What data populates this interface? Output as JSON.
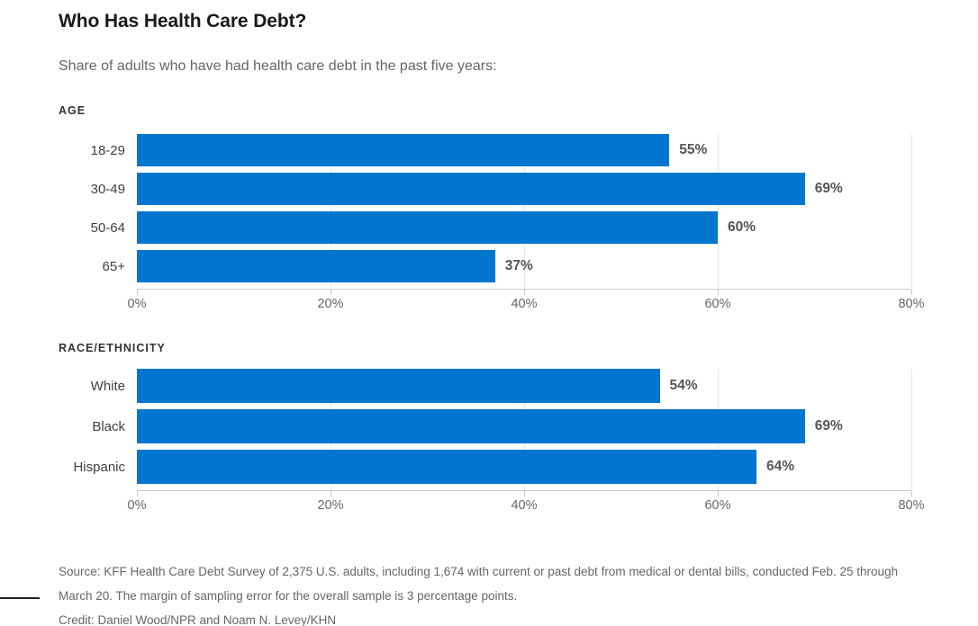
{
  "title": "Who Has Health Care Debt?",
  "subtitle": "Share of adults who have had health care debt in the past five years:",
  "colors": {
    "bar": "#0276CE",
    "axis": "#c9c9c9",
    "gridline": "#e7e7e7"
  },
  "chart_data": [
    {
      "type": "bar",
      "orientation": "horizontal",
      "section_label": "AGE",
      "categories": [
        "18-29",
        "30-49",
        "50-64",
        "65+"
      ],
      "values": [
        55,
        69,
        60,
        37
      ],
      "value_labels": [
        "55%",
        "69%",
        "60%",
        "37%"
      ],
      "xlim": [
        0,
        80
      ],
      "gridline_values": [
        20,
        40,
        60,
        80
      ],
      "x_ticks": [
        {
          "label": "0%",
          "value": 0
        },
        {
          "label": "20%",
          "value": 20
        },
        {
          "label": "40%",
          "value": 40
        },
        {
          "label": "60%",
          "value": 60
        },
        {
          "label": "80%",
          "value": 80
        }
      ],
      "grid": true,
      "legend": "none"
    },
    {
      "type": "bar",
      "orientation": "horizontal",
      "section_label": "RACE/ETHNICITY",
      "categories": [
        "White",
        "Black",
        "Hispanic"
      ],
      "values": [
        54,
        69,
        64
      ],
      "value_labels": [
        "54%",
        "69%",
        "64%"
      ],
      "xlim": [
        0,
        80
      ],
      "gridline_values": [
        20,
        40,
        60,
        80
      ],
      "x_ticks": [
        {
          "label": "0%",
          "value": 0
        },
        {
          "label": "20%",
          "value": 20
        },
        {
          "label": "40%",
          "value": 40
        },
        {
          "label": "60%",
          "value": 60
        },
        {
          "label": "80%",
          "value": 80
        }
      ],
      "grid": true,
      "legend": "none"
    }
  ],
  "footer": {
    "source_lines": [
      "Source: KFF Health Care Debt Survey of 2,375 U.S. adults, including 1,674 with current or past debt from medical or dental bills, conducted Feb. 25 through",
      "March 20. The margin of sampling error for the overall sample is 3 percentage points."
    ],
    "credit_line": "Credit: Daniel Wood/NPR and Noam N. Levey/KHN"
  }
}
